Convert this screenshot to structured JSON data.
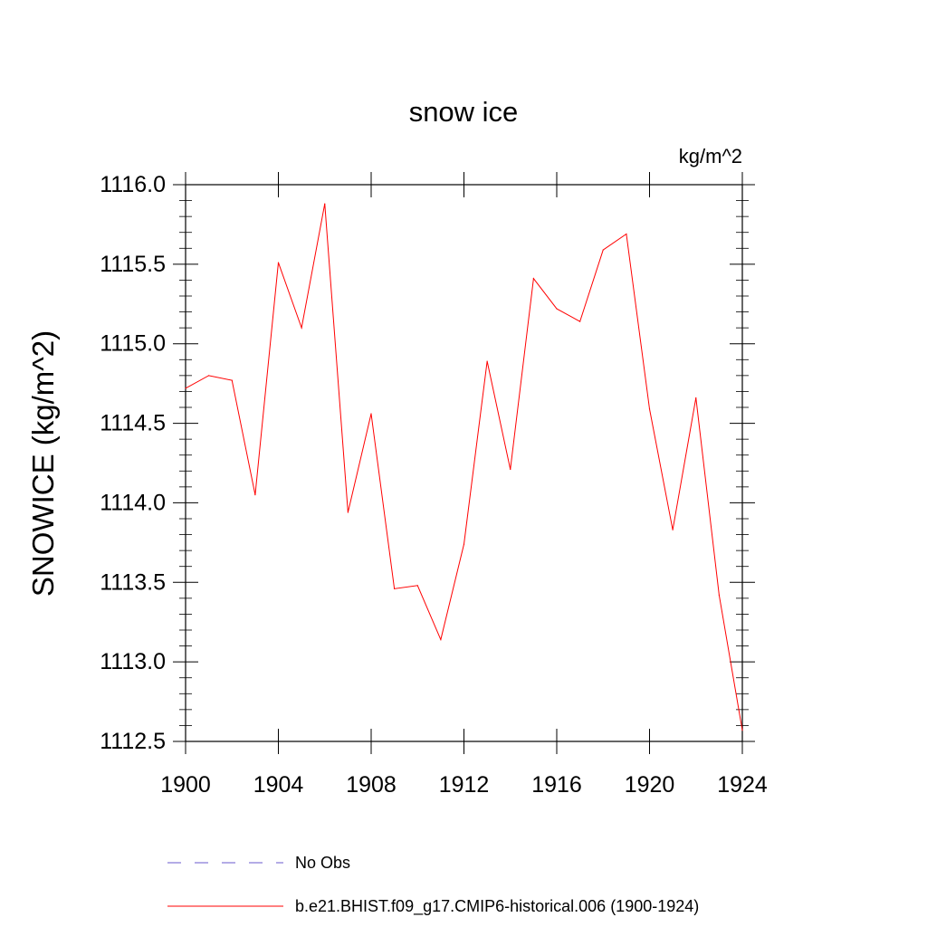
{
  "chart_data": {
    "type": "line",
    "title": "snow ice",
    "units_label": "kg/m^2",
    "ylabel": "SNOWICE  (kg/m^2)",
    "xlabel": "",
    "xlim": [
      1900,
      1924
    ],
    "ylim": [
      1112.5,
      1116.0
    ],
    "x_ticks": [
      1900,
      1904,
      1908,
      1912,
      1916,
      1920,
      1924
    ],
    "x_tick_labels": [
      "1900",
      "1904",
      "1908",
      "1912",
      "1916",
      "1920",
      "1924"
    ],
    "y_ticks": [
      1112.5,
      1113.0,
      1113.5,
      1114.0,
      1114.5,
      1115.0,
      1115.5,
      1116.0
    ],
    "y_tick_labels": [
      "1112.5",
      "1113.0",
      "1113.5",
      "1114.0",
      "1114.5",
      "1115.0",
      "1115.5",
      "1116.0"
    ],
    "series": [
      {
        "name": "b.e21.BHIST.f09_g17.CMIP6-historical.006 (1900-1924)",
        "color": "#ff0000",
        "x": [
          1900,
          1901,
          1902,
          1903,
          1904,
          1905,
          1906,
          1907,
          1908,
          1909,
          1910,
          1911,
          1912,
          1913,
          1914,
          1915,
          1916,
          1917,
          1918,
          1919,
          1920,
          1921,
          1922,
          1923,
          1924
        ],
        "values": [
          1114.72,
          1114.8,
          1114.77,
          1114.05,
          1115.51,
          1115.1,
          1115.88,
          1113.94,
          1114.56,
          1113.46,
          1113.48,
          1113.14,
          1113.74,
          1114.89,
          1114.21,
          1115.41,
          1115.22,
          1115.14,
          1115.59,
          1115.69,
          1114.59,
          1113.83,
          1114.66,
          1113.42,
          1112.57
        ]
      }
    ],
    "legend": [
      {
        "label": "No Obs",
        "color": "#6a5acd",
        "style": "dashed"
      },
      {
        "label": "b.e21.BHIST.f09_g17.CMIP6-historical.006 (1900-1924)",
        "color": "#ff0000",
        "style": "solid"
      }
    ]
  }
}
